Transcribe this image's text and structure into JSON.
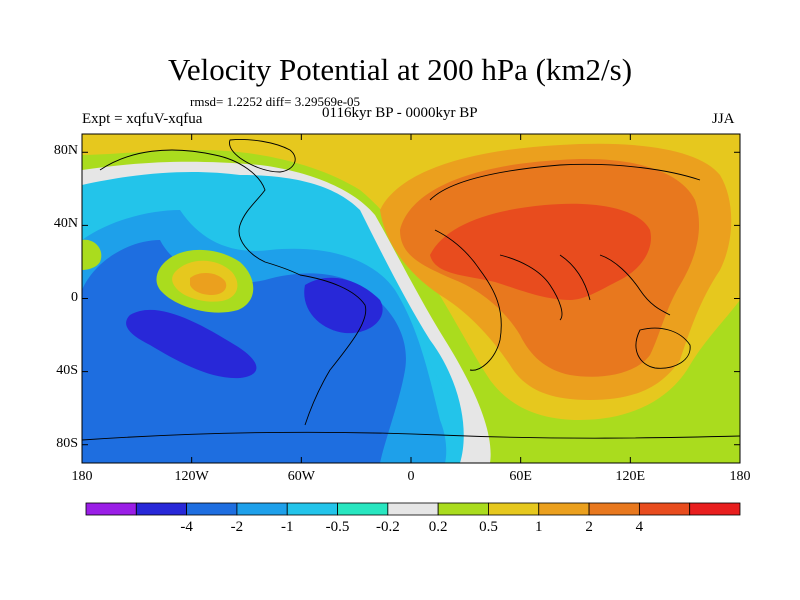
{
  "title": "Velocity Potential at 200 hPa (km2/s)",
  "stats_text": "rmsd= 1.2252 diff= 3.29569e-05",
  "expt_text": "Expt = xqfuV-xqfua",
  "period_text": "0116kyr BP - 0000kyr BP",
  "season_text": "JJA",
  "map": {
    "lon_range": [
      -180,
      180
    ],
    "lat_range": [
      -90,
      90
    ],
    "y_ticks": [
      {
        "lat": 80,
        "label": "80N"
      },
      {
        "lat": 40,
        "label": "40N"
      },
      {
        "lat": 0,
        "label": "0"
      },
      {
        "lat": -40,
        "label": "40S"
      },
      {
        "lat": -80,
        "label": "80S"
      }
    ],
    "x_ticks": [
      {
        "lon": -180,
        "label": "180"
      },
      {
        "lon": -120,
        "label": "120W"
      },
      {
        "lon": -60,
        "label": "60W"
      },
      {
        "lon": 0,
        "label": "0"
      },
      {
        "lon": 60,
        "label": "60E"
      },
      {
        "lon": 120,
        "label": "120E"
      },
      {
        "lon": 180,
        "label": "180"
      }
    ]
  },
  "colorbar": {
    "colors": [
      "#9a1ee6",
      "#2828d8",
      "#1e6ee0",
      "#1ea0ea",
      "#23c4ea",
      "#28e6c0",
      "#e6e6e6",
      "#aadc1e",
      "#e6c81e",
      "#eba01e",
      "#e8781e",
      "#e84c1e",
      "#e81e1e"
    ],
    "labels": [
      "-4",
      "-2",
      "-1",
      "-0.5",
      "-0.2",
      "0.2",
      "0.5",
      "1",
      "2",
      "4"
    ]
  },
  "palette": {
    "v_m4": "#2828d8",
    "v_m2": "#1e6ee0",
    "v_m1": "#1ea0ea",
    "v_m05": "#23c4ea",
    "v_m02": "#28e6c0",
    "v_0": "#e6e6e6",
    "v_02": "#aadc1e",
    "v_05": "#e6c81e",
    "v_1": "#eba01e",
    "v_2": "#e8781e",
    "v_4": "#e84c1e"
  }
}
